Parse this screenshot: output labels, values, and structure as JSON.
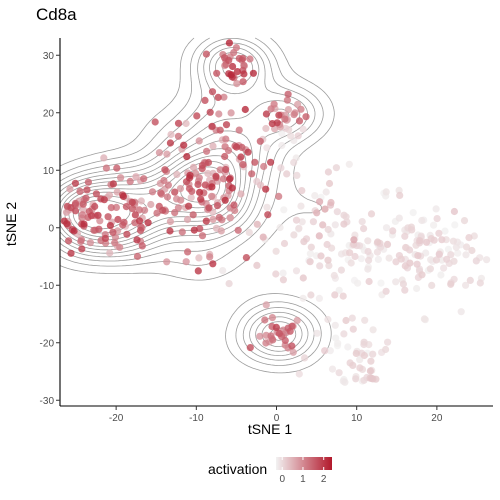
{
  "chart_data": {
    "type": "scatter",
    "title": "Cd8a",
    "xlabel": "tSNE 1",
    "ylabel": "tSNE 2",
    "xlim": [
      -27,
      27
    ],
    "ylim": [
      -31,
      33
    ],
    "x_ticks": [
      -20,
      -10,
      0,
      10,
      20
    ],
    "y_ticks": [
      -30,
      -20,
      -10,
      0,
      10,
      20,
      30
    ],
    "grid": false,
    "legend": {
      "title": "activation",
      "position": "bottom",
      "ticks": [
        0,
        1,
        2
      ],
      "range": [
        -0.3,
        2.4
      ],
      "color_low": "#f2f2f2",
      "color_high": "#b2182b"
    },
    "contour_color": "#8c8c8c",
    "clusters": [
      {
        "cx": -23,
        "cy": 2,
        "sx": 3.5,
        "sy": 3.5,
        "n": 110,
        "act": [
          0.4,
          2.2
        ]
      },
      {
        "cx": -16,
        "cy": 5,
        "sx": 2.5,
        "sy": 4,
        "n": 25,
        "act": [
          0.3,
          2.0
        ]
      },
      {
        "cx": -9,
        "cy": 8,
        "sx": 3,
        "sy": 6,
        "n": 130,
        "act": [
          0.3,
          2.2
        ]
      },
      {
        "cx": -3.5,
        "cy": 14,
        "sx": 2.5,
        "sy": 5,
        "n": 35,
        "act": [
          0.2,
          2.0
        ]
      },
      {
        "cx": -5,
        "cy": 28,
        "sx": 1.3,
        "sy": 1.5,
        "n": 30,
        "act": [
          0.8,
          2.3
        ]
      },
      {
        "cx": 1,
        "cy": 20,
        "sx": 1.5,
        "sy": 1.2,
        "n": 20,
        "act": [
          0.6,
          2.1
        ]
      },
      {
        "cx": 0,
        "cy": -19,
        "sx": 1.3,
        "sy": 1.6,
        "n": 30,
        "act": [
          0.6,
          2.1
        ]
      },
      {
        "cx": 1,
        "cy": 13,
        "sx": 2,
        "sy": 4,
        "n": 15,
        "act": [
          -0.3,
          0.2
        ]
      },
      {
        "cx": 12,
        "cy": -4,
        "sx": 7,
        "sy": 5,
        "n": 170,
        "act": [
          -0.3,
          0.25
        ]
      },
      {
        "cx": 20,
        "cy": -3,
        "sx": 2.5,
        "sy": 2.5,
        "n": 40,
        "act": [
          -0.3,
          0.2
        ]
      },
      {
        "cx": 9,
        "cy": -22,
        "sx": 2.5,
        "sy": 3,
        "n": 40,
        "act": [
          -0.3,
          0.2
        ]
      },
      {
        "cx": 11,
        "cy": -25,
        "sx": 1,
        "sy": 1.2,
        "n": 10,
        "act": [
          -0.3,
          0.3
        ]
      },
      {
        "cx": 5,
        "cy": 2,
        "sx": 2,
        "sy": 3,
        "n": 15,
        "act": [
          -0.3,
          0.7
        ]
      }
    ]
  }
}
